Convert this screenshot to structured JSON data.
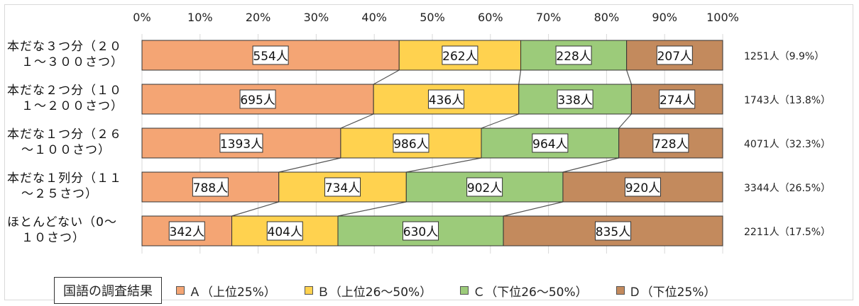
{
  "chart_data": {
    "type": "bar",
    "orientation": "horizontal",
    "stacked": "percent",
    "legend_title": "国語の調査結果",
    "legend_position": "bottom",
    "x_tick_labels": [
      "0%",
      "10%",
      "20%",
      "30%",
      "40%",
      "50%",
      "60%",
      "70%",
      "80%",
      "90%",
      "100%"
    ],
    "xlim": [
      0,
      100
    ],
    "grid": true,
    "categories": [
      [
        "本だな３つ分（２０",
        "１～３００さつ）"
      ],
      [
        "本だな２つ分（１０",
        "１～２００さつ）"
      ],
      [
        "本だな１つ分（２６",
        "～１００さつ）"
      ],
      [
        "本だな１列分（１１",
        "～２５さつ）"
      ],
      [
        "ほとんどない（0～",
        "１０さつ）"
      ]
    ],
    "totals": [
      "1251人（9.9%）",
      "1743人（13.8%）",
      "4071人（32.3%）",
      "3344人（26.5%）",
      "2211人（17.5%）"
    ],
    "series": [
      {
        "name": "Ａ（上位25%）",
        "color": "#F4A574",
        "values": [
          554,
          695,
          1393,
          788,
          342
        ],
        "labels": [
          "554人",
          "695人",
          "1393人",
          "788人",
          "342人"
        ]
      },
      {
        "name": "Ｂ（上位26～50%）",
        "color": "#FFD24F",
        "values": [
          262,
          436,
          986,
          734,
          404
        ],
        "labels": [
          "262人",
          "436人",
          "986人",
          "734人",
          "404人"
        ]
      },
      {
        "name": "Ｃ（下位26～50%）",
        "color": "#9CCB7A",
        "values": [
          228,
          338,
          964,
          902,
          630
        ],
        "labels": [
          "228人",
          "338人",
          "964人",
          "902人",
          "630人"
        ]
      },
      {
        "name": "Ｄ（下位25%）",
        "color": "#C38A5D",
        "values": [
          207,
          274,
          728,
          920,
          835
        ],
        "labels": [
          "207人",
          "274人",
          "728人",
          "920人",
          "835人"
        ]
      }
    ]
  }
}
